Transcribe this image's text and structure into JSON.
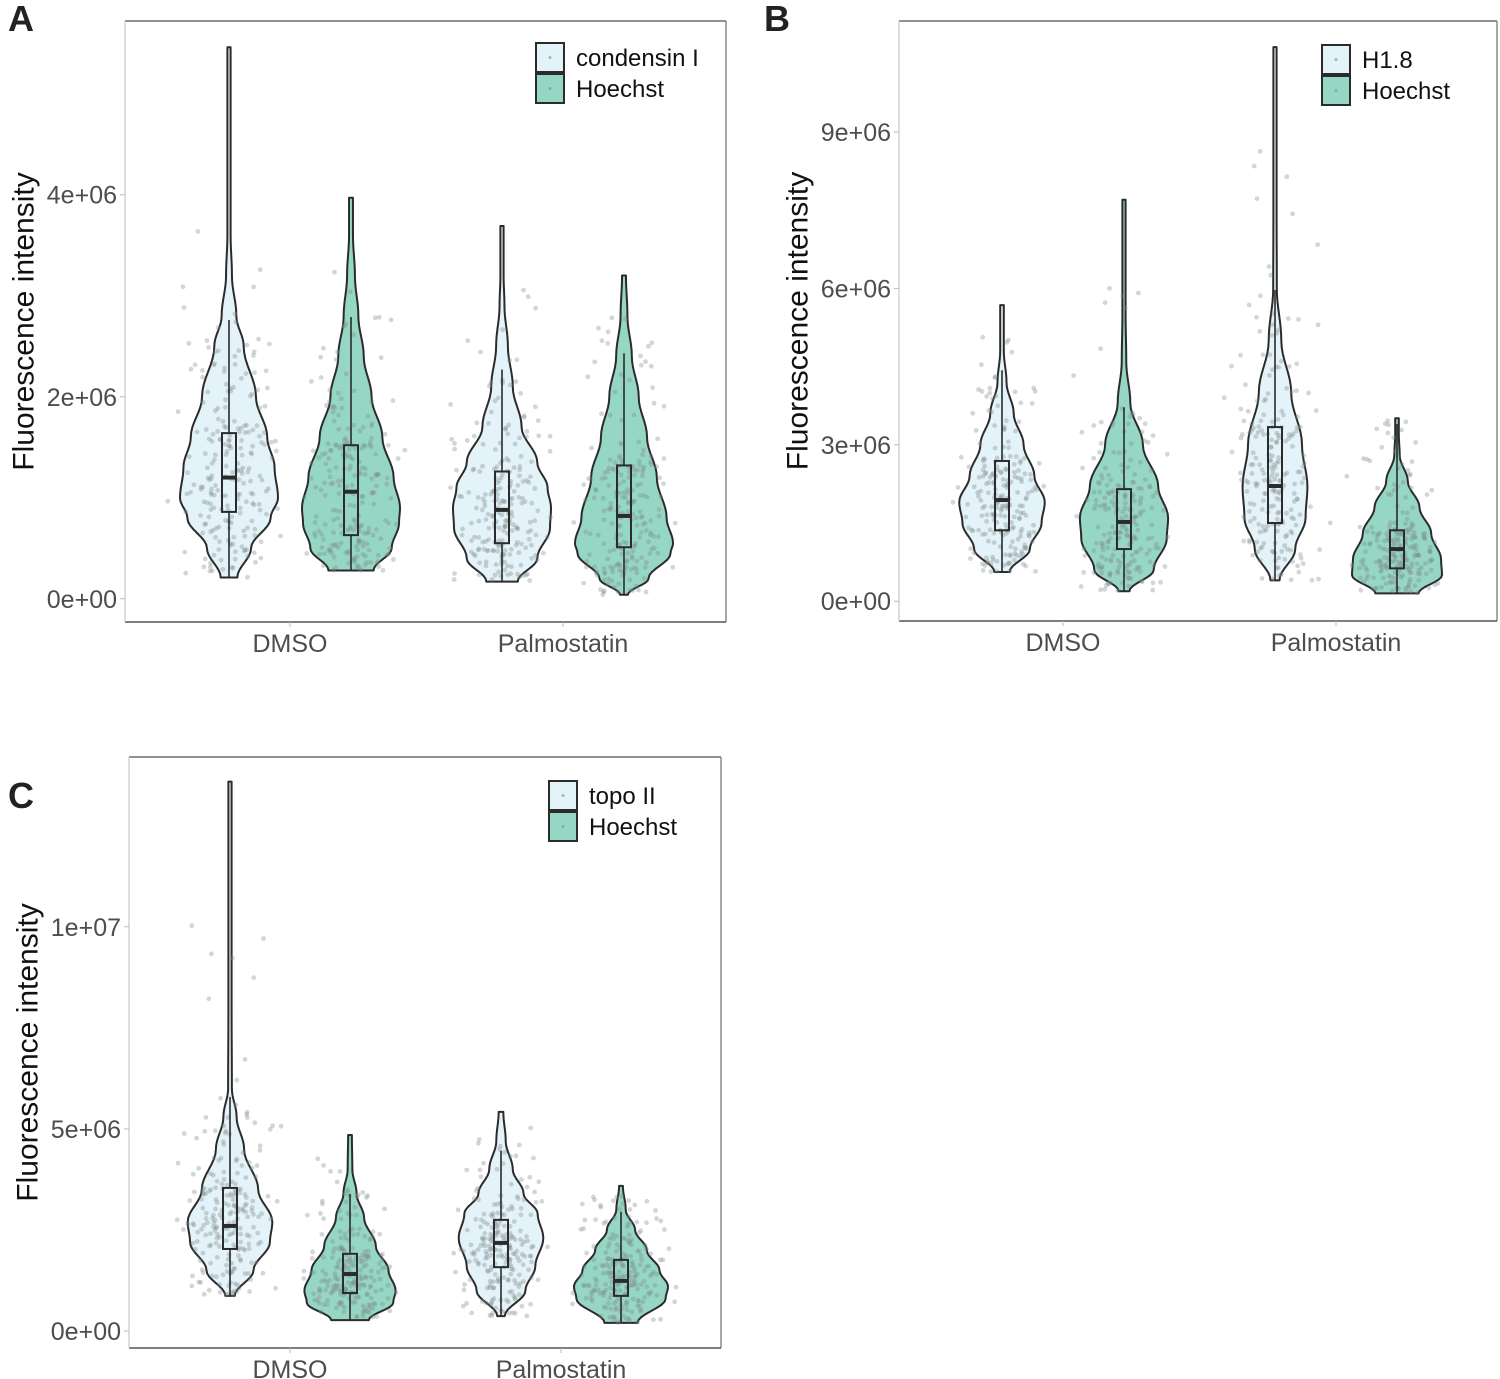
{
  "colors": {
    "protein_fill": "#e4f3f9",
    "hoechst_fill": "#95d7c4",
    "outline": "#2b2b2b",
    "points": "#7f8a8a",
    "frame": "#666666",
    "tick_text": "#4d4d4d"
  },
  "chart_data": [
    {
      "panel": "A",
      "type": "violin",
      "title": "",
      "xlabel": "",
      "ylabel": "Fluorescence intensity",
      "ylim": [
        -230000,
        5720000
      ],
      "yticks": [
        0,
        2000000,
        4000000
      ],
      "ytick_labels": [
        "0e+00",
        "2e+06",
        "4e+06"
      ],
      "categories": [
        "DMSO",
        "Palmostatin"
      ],
      "legend": {
        "position": "top-right",
        "entries": [
          "condensin I",
          "Hoechst"
        ]
      },
      "series": [
        {
          "name": "condensin I",
          "fill": "protein",
          "groups": [
            {
              "category": "DMSO",
              "min": 210000,
              "q1": 860000,
              "median": 1200000,
              "q3": 1640000,
              "whisker_high": 2760000,
              "max": 5460000,
              "density": [
                [
                  0.21,
                  0.17
                ],
                [
                  0.5,
                  0.45
                ],
                [
                  0.8,
                  0.85
                ],
                [
                  1.0,
                  1.0
                ],
                [
                  1.3,
                  0.93
                ],
                [
                  1.6,
                  0.78
                ],
                [
                  2.0,
                  0.55
                ],
                [
                  2.5,
                  0.3
                ],
                [
                  2.8,
                  0.15
                ],
                [
                  3.2,
                  0.06
                ],
                [
                  3.6,
                  0.03
                ],
                [
                  4.2,
                  0.03
                ],
                [
                  5.0,
                  0.03
                ],
                [
                  5.46,
                  0.03
                ]
              ]
            },
            {
              "category": "Palmostatin",
              "min": 170000,
              "q1": 550000,
              "median": 880000,
              "q3": 1260000,
              "whisker_high": 2270000,
              "max": 3690000,
              "density": [
                [
                  0.17,
                  0.32
                ],
                [
                  0.4,
                  0.72
                ],
                [
                  0.7,
                  0.98
                ],
                [
                  0.9,
                  1.0
                ],
                [
                  1.1,
                  0.93
                ],
                [
                  1.35,
                  0.72
                ],
                [
                  1.7,
                  0.4
                ],
                [
                  2.1,
                  0.22
                ],
                [
                  2.5,
                  0.12
                ],
                [
                  2.9,
                  0.05
                ],
                [
                  3.2,
                  0.03
                ],
                [
                  3.69,
                  0.03
                ]
              ]
            }
          ]
        },
        {
          "name": "Hoechst",
          "fill": "hoechst",
          "groups": [
            {
              "category": "DMSO",
              "min": 280000,
              "q1": 630000,
              "median": 1060000,
              "q3": 1520000,
              "whisker_high": 2790000,
              "max": 3970000,
              "density": [
                [
                  0.28,
                  0.46
                ],
                [
                  0.5,
                  0.83
                ],
                [
                  0.75,
                  0.98
                ],
                [
                  0.9,
                  1.0
                ],
                [
                  1.2,
                  0.87
                ],
                [
                  1.6,
                  0.64
                ],
                [
                  2.0,
                  0.42
                ],
                [
                  2.4,
                  0.26
                ],
                [
                  2.8,
                  0.15
                ],
                [
                  3.2,
                  0.08
                ],
                [
                  3.6,
                  0.04
                ],
                [
                  3.97,
                  0.04
                ]
              ]
            },
            {
              "category": "Palmostatin",
              "min": 40000,
              "q1": 510000,
              "median": 820000,
              "q3": 1320000,
              "whisker_high": 2430000,
              "max": 3200000,
              "density": [
                [
                  0.04,
                  0.08
                ],
                [
                  0.2,
                  0.5
                ],
                [
                  0.45,
                  0.95
                ],
                [
                  0.55,
                  1.0
                ],
                [
                  0.8,
                  0.87
                ],
                [
                  1.2,
                  0.67
                ],
                [
                  1.6,
                  0.47
                ],
                [
                  2.0,
                  0.3
                ],
                [
                  2.4,
                  0.16
                ],
                [
                  2.8,
                  0.07
                ],
                [
                  3.2,
                  0.04
                ]
              ]
            }
          ]
        }
      ]
    },
    {
      "panel": "B",
      "type": "violin",
      "title": "",
      "xlabel": "",
      "ylabel": "Fluorescence intensity",
      "ylim": [
        -380000,
        11130000
      ],
      "yticks": [
        0,
        3000000,
        6000000,
        9000000
      ],
      "ytick_labels": [
        "0e+00",
        "3e+06",
        "6e+06",
        "9e+06"
      ],
      "categories": [
        "DMSO",
        "Palmostatin"
      ],
      "legend": {
        "position": "top-right",
        "entries": [
          "H1.8",
          "Hoechst"
        ]
      },
      "series": [
        {
          "name": "H1.8",
          "fill": "protein",
          "groups": [
            {
              "category": "DMSO",
              "min": 560000,
              "q1": 1360000,
              "median": 1940000,
              "q3": 2690000,
              "whisker_high": 4430000,
              "max": 5680000,
              "density": [
                [
                  0.56,
                  0.17
                ],
                [
                  1.0,
                  0.62
                ],
                [
                  1.5,
                  0.88
                ],
                [
                  1.9,
                  0.95
                ],
                [
                  2.4,
                  0.72
                ],
                [
                  3.0,
                  0.48
                ],
                [
                  3.6,
                  0.26
                ],
                [
                  4.2,
                  0.1
                ],
                [
                  4.8,
                  0.04
                ],
                [
                  5.68,
                  0.04
                ]
              ]
            },
            {
              "category": "Palmostatin",
              "min": 400000,
              "q1": 1500000,
              "median": 2210000,
              "q3": 3340000,
              "whisker_high": 5970000,
              "max": 10630000,
              "density": [
                [
                  0.4,
                  0.1
                ],
                [
                  1.0,
                  0.45
                ],
                [
                  1.6,
                  0.68
                ],
                [
                  2.2,
                  0.72
                ],
                [
                  3.0,
                  0.6
                ],
                [
                  4.0,
                  0.36
                ],
                [
                  5.0,
                  0.14
                ],
                [
                  6.0,
                  0.04
                ],
                [
                  7.5,
                  0.02
                ],
                [
                  10.63,
                  0.02
                ]
              ]
            }
          ]
        },
        {
          "name": "Hoechst",
          "fill": "hoechst",
          "groups": [
            {
              "category": "DMSO",
              "min": 190000,
              "q1": 1000000,
              "median": 1520000,
              "q3": 2150000,
              "whisker_high": 3720000,
              "max": 7700000,
              "density": [
                [
                  0.19,
                  0.12
                ],
                [
                  0.6,
                  0.66
                ],
                [
                  1.2,
                  0.95
                ],
                [
                  1.6,
                  0.98
                ],
                [
                  2.2,
                  0.76
                ],
                [
                  3.0,
                  0.42
                ],
                [
                  3.8,
                  0.14
                ],
                [
                  4.6,
                  0.05
                ],
                [
                  5.5,
                  0.03
                ],
                [
                  7.7,
                  0.03
                ]
              ]
            },
            {
              "category": "Palmostatin",
              "min": 150000,
              "q1": 630000,
              "median": 1000000,
              "q3": 1360000,
              "whisker_high": 3400000,
              "max": 3510000,
              "density": [
                [
                  0.15,
                  0.48
                ],
                [
                  0.5,
                  1.0
                ],
                [
                  0.8,
                  0.98
                ],
                [
                  1.3,
                  0.76
                ],
                [
                  1.8,
                  0.5
                ],
                [
                  2.3,
                  0.24
                ],
                [
                  2.8,
                  0.06
                ],
                [
                  3.2,
                  0.04
                ],
                [
                  3.51,
                  0.04
                ]
              ]
            }
          ]
        }
      ]
    },
    {
      "panel": "C",
      "type": "violin",
      "title": "",
      "xlabel": "",
      "ylabel": "Fluorescence intensity",
      "ylim": [
        -420000,
        14200000
      ],
      "yticks": [
        0,
        5000000,
        10000000
      ],
      "ytick_labels": [
        "0e+00",
        "5e+06",
        "1e+07"
      ],
      "categories": [
        "DMSO",
        "Palmostatin"
      ],
      "legend": {
        "position": "top-right",
        "entries": [
          "topo II",
          "Hoechst"
        ]
      },
      "series": [
        {
          "name": "topo II",
          "fill": "protein",
          "groups": [
            {
              "category": "DMSO",
              "min": 870000,
              "q1": 2030000,
              "median": 2600000,
              "q3": 3540000,
              "whisker_high": 5790000,
              "max": 13590000,
              "density": [
                [
                  0.87,
                  0.1
                ],
                [
                  1.5,
                  0.5
                ],
                [
                  2.2,
                  0.85
                ],
                [
                  2.7,
                  0.9
                ],
                [
                  3.5,
                  0.6
                ],
                [
                  4.5,
                  0.3
                ],
                [
                  5.3,
                  0.14
                ],
                [
                  6.0,
                  0.04
                ],
                [
                  8.0,
                  0.02
                ],
                [
                  13.59,
                  0.02
                ]
              ]
            },
            {
              "category": "Palmostatin",
              "min": 370000,
              "q1": 1580000,
              "median": 2180000,
              "q3": 2750000,
              "whisker_high": 4460000,
              "max": 5420000,
              "density": [
                [
                  0.37,
                  0.08
                ],
                [
                  1.0,
                  0.52
                ],
                [
                  1.6,
                  0.73
                ],
                [
                  2.3,
                  0.9
                ],
                [
                  2.9,
                  0.78
                ],
                [
                  3.4,
                  0.48
                ],
                [
                  4.0,
                  0.25
                ],
                [
                  4.7,
                  0.1
                ],
                [
                  5.42,
                  0.05
                ]
              ]
            }
          ]
        },
        {
          "name": "Hoechst",
          "fill": "hoechst",
          "groups": [
            {
              "category": "DMSO",
              "min": 270000,
              "q1": 940000,
              "median": 1410000,
              "q3": 1910000,
              "whisker_high": 3390000,
              "max": 4850000,
              "density": [
                [
                  0.27,
                  0.4
                ],
                [
                  0.7,
                  0.92
                ],
                [
                  1.0,
                  0.97
                ],
                [
                  1.5,
                  0.82
                ],
                [
                  2.1,
                  0.55
                ],
                [
                  2.8,
                  0.3
                ],
                [
                  3.4,
                  0.14
                ],
                [
                  4.0,
                  0.05
                ],
                [
                  4.85,
                  0.04
                ]
              ]
            },
            {
              "category": "Palmostatin",
              "min": 200000,
              "q1": 870000,
              "median": 1240000,
              "q3": 1760000,
              "whisker_high": 2950000,
              "max": 3590000,
              "density": [
                [
                  0.2,
                  0.35
                ],
                [
                  0.8,
                  0.95
                ],
                [
                  1.1,
                  1.0
                ],
                [
                  1.5,
                  0.82
                ],
                [
                  2.0,
                  0.55
                ],
                [
                  2.5,
                  0.3
                ],
                [
                  3.0,
                  0.1
                ],
                [
                  3.59,
                  0.04
                ]
              ]
            }
          ]
        }
      ]
    }
  ]
}
